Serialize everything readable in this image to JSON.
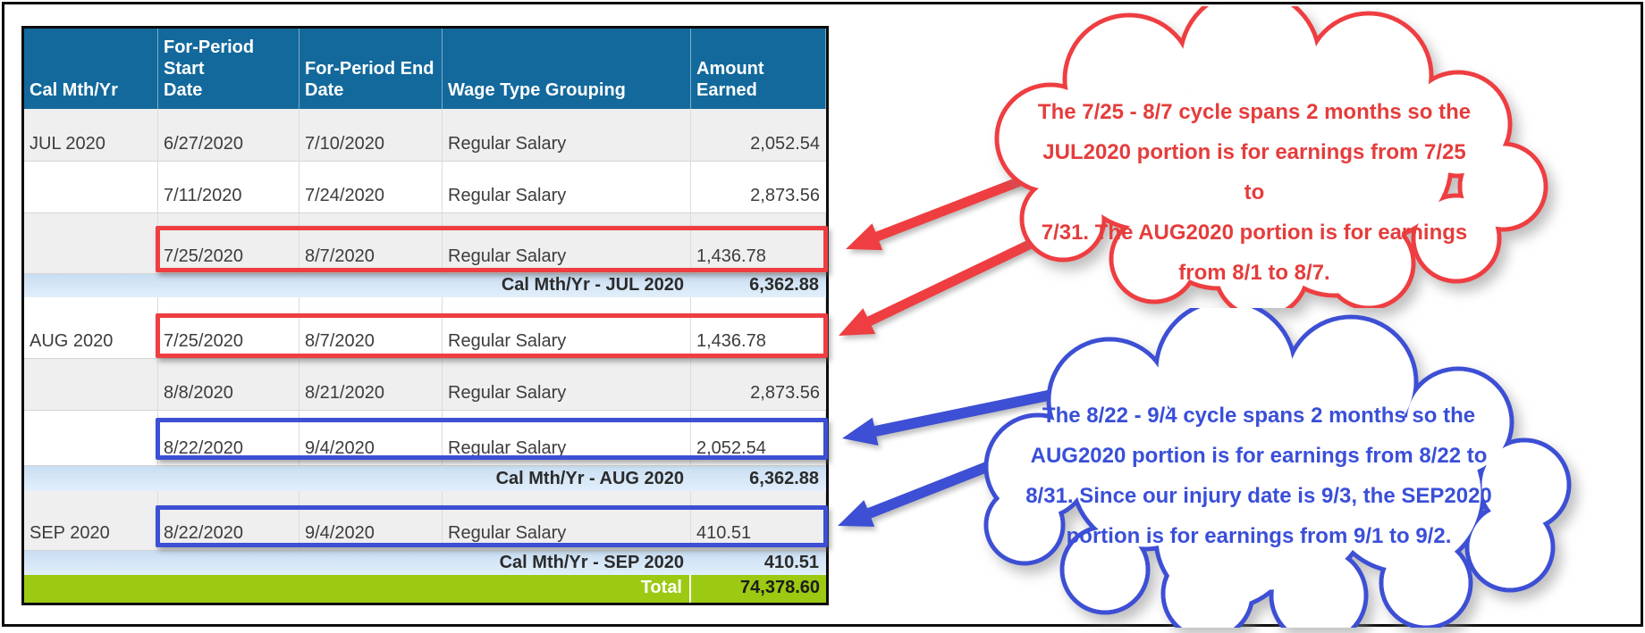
{
  "table": {
    "headers": [
      "Cal Mth/Yr",
      "For-Period Start\nDate",
      "For-Period End\nDate",
      "Wage Type Grouping",
      "Amount Earned"
    ],
    "rows": [
      {
        "month": "JUL 2020",
        "start": "6/27/2020",
        "end": "7/10/2020",
        "wage": "Regular Salary",
        "amount": "2,052.54"
      },
      {
        "month": "",
        "start": "7/11/2020",
        "end": "7/24/2020",
        "wage": "Regular Salary",
        "amount": "2,873.56"
      },
      {
        "month": "",
        "start": "7/25/2020",
        "end": "8/7/2020",
        "wage": "Regular Salary",
        "amount": "1,436.78"
      },
      {
        "label": "Cal Mth/Yr - JUL 2020",
        "amount": "6,362.88"
      },
      {
        "month": "AUG 2020",
        "start": "7/25/2020",
        "end": "8/7/2020",
        "wage": "Regular Salary",
        "amount": "1,436.78"
      },
      {
        "month": "",
        "start": "8/8/2020",
        "end": "8/21/2020",
        "wage": "Regular Salary",
        "amount": "2,873.56"
      },
      {
        "month": "",
        "start": "8/22/2020",
        "end": "9/4/2020",
        "wage": "Regular Salary",
        "amount": "2,052.54"
      },
      {
        "label": "Cal Mth/Yr - AUG 2020",
        "amount": "6,362.88"
      },
      {
        "month": "SEP 2020",
        "start": "8/22/2020",
        "end": "9/4/2020",
        "wage": "Regular Salary",
        "amount": "410.51"
      },
      {
        "label": "Cal Mth/Yr - SEP 2020",
        "amount": "410.51"
      },
      {
        "label": "Total",
        "amount": "74,378.60"
      }
    ]
  },
  "callouts": {
    "red": {
      "lines": [
        "The 7/25 - 8/7 cycle spans 2 months so the",
        "JUL2020 portion is for earnings from 7/25 to",
        "7/31. The AUG2020 portion is for earnings",
        "from 8/1 to 8/7."
      ]
    },
    "blue": {
      "lines": [
        "The 8/22 - 9/4 cycle spans 2 months so the",
        "AUG2020 portion is for earnings from 8/22 to",
        "8/31. Since our injury date is 9/3, the SEP2020",
        "portion is for earnings from 9/1 to 9/2."
      ]
    }
  },
  "colors": {
    "header_bg": "#13699c",
    "stripe_row": "#efefef",
    "subtotal_bg": "#d5e7f7",
    "total_bg": "#9cca12",
    "annotation_red": "#ee3e41",
    "annotation_blue": "#3d4fd4"
  }
}
